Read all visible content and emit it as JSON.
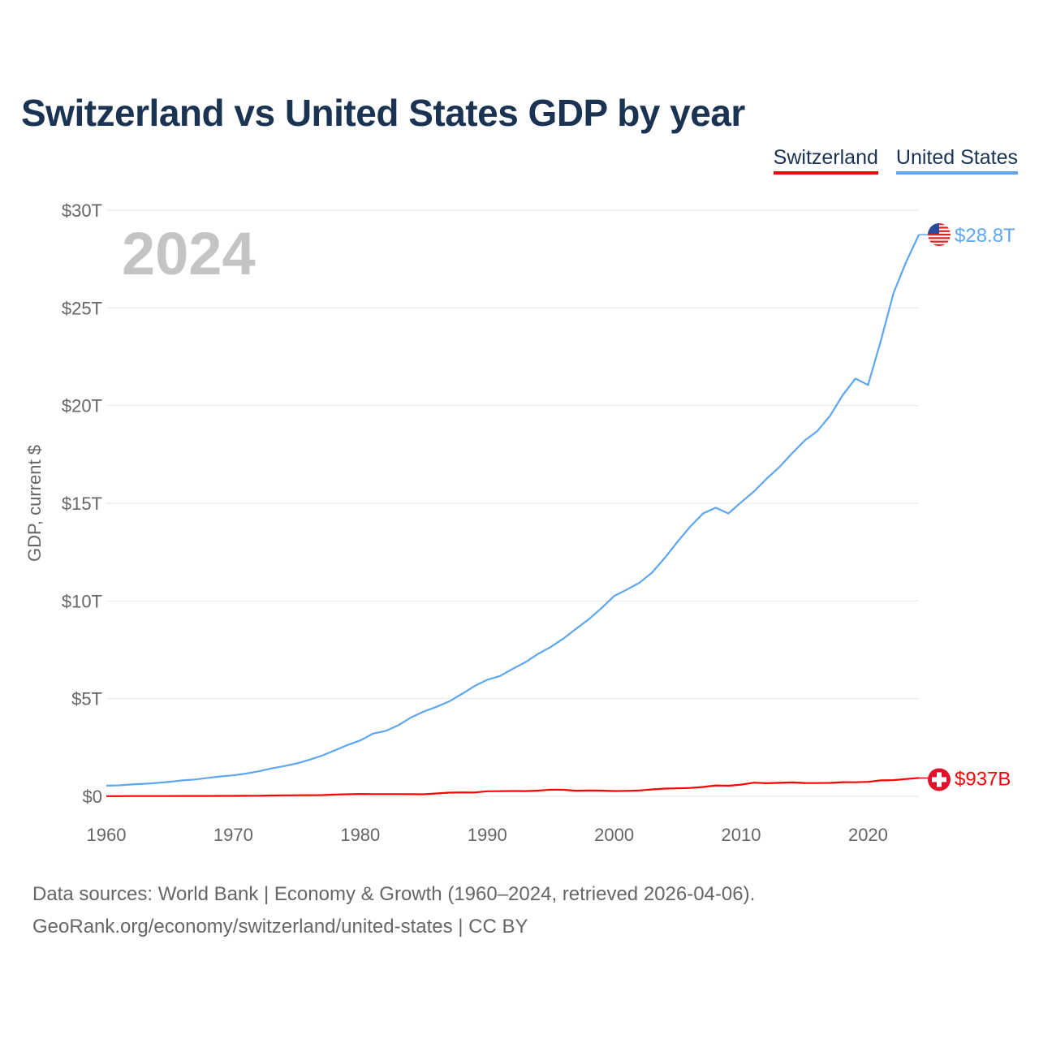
{
  "chart_data": {
    "type": "line",
    "title": "Switzerland vs United States GDP by year",
    "ylabel": "GDP, current $",
    "xlabel": "",
    "year_label": "2024",
    "xlim": [
      1960,
      2024
    ],
    "ylim": [
      0,
      30
    ],
    "x_ticks": [
      1960,
      1970,
      1980,
      1990,
      2000,
      2010,
      2020
    ],
    "y_ticks": [
      0,
      5,
      10,
      15,
      20,
      25,
      30
    ],
    "y_tick_labels": [
      "$0",
      "$5T",
      "$10T",
      "$15T",
      "$20T",
      "$25T",
      "$30T"
    ],
    "grid": true,
    "legend_position": "top-right",
    "x": [
      1960,
      1961,
      1962,
      1963,
      1964,
      1965,
      1966,
      1967,
      1968,
      1969,
      1970,
      1971,
      1972,
      1973,
      1974,
      1975,
      1976,
      1977,
      1978,
      1979,
      1980,
      1981,
      1982,
      1983,
      1984,
      1985,
      1986,
      1987,
      1988,
      1989,
      1990,
      1991,
      1992,
      1993,
      1994,
      1995,
      1996,
      1997,
      1998,
      1999,
      2000,
      2001,
      2002,
      2003,
      2004,
      2005,
      2006,
      2007,
      2008,
      2009,
      2010,
      2011,
      2012,
      2013,
      2014,
      2015,
      2016,
      2017,
      2018,
      2019,
      2020,
      2021,
      2022,
      2023,
      2024
    ],
    "series": [
      {
        "name": "Switzerland",
        "color": "#ff0000",
        "end_label": "$937B",
        "flag": "switzerland-flag",
        "values": [
          0.009,
          0.01,
          0.011,
          0.012,
          0.013,
          0.014,
          0.015,
          0.016,
          0.017,
          0.019,
          0.021,
          0.025,
          0.031,
          0.041,
          0.048,
          0.056,
          0.059,
          0.063,
          0.089,
          0.102,
          0.12,
          0.112,
          0.113,
          0.114,
          0.109,
          0.103,
          0.146,
          0.185,
          0.198,
          0.196,
          0.258,
          0.263,
          0.271,
          0.266,
          0.292,
          0.342,
          0.331,
          0.287,
          0.295,
          0.289,
          0.272,
          0.279,
          0.301,
          0.352,
          0.394,
          0.408,
          0.43,
          0.479,
          0.555,
          0.541,
          0.598,
          0.7,
          0.668,
          0.689,
          0.709,
          0.68,
          0.677,
          0.687,
          0.721,
          0.717,
          0.741,
          0.813,
          0.828,
          0.885,
          0.937
        ]
      },
      {
        "name": "United States",
        "color": "#5ea6ef",
        "end_label": "$28.8T",
        "flag": "usa-flag",
        "values": [
          0.543,
          0.563,
          0.605,
          0.639,
          0.686,
          0.744,
          0.815,
          0.862,
          0.943,
          1.02,
          1.073,
          1.165,
          1.28,
          1.425,
          1.545,
          1.684,
          1.873,
          2.082,
          2.352,
          2.627,
          2.857,
          3.207,
          3.343,
          3.634,
          4.037,
          4.339,
          4.58,
          4.855,
          5.236,
          5.642,
          5.963,
          6.158,
          6.52,
          6.859,
          7.287,
          7.64,
          8.073,
          8.578,
          9.063,
          9.631,
          10.251,
          10.582,
          10.936,
          11.458,
          12.214,
          13.037,
          13.815,
          14.475,
          14.77,
          14.478,
          15.049,
          15.6,
          16.254,
          16.843,
          17.551,
          18.206,
          18.695,
          19.477,
          20.533,
          21.381,
          21.06,
          23.315,
          25.744,
          27.361,
          28.751
        ]
      }
    ]
  },
  "footer": {
    "line1": "Data sources: World Bank | Economy & Growth (1960–2024, retrieved 2026-04-06).",
    "line2": "GeoRank.org/economy/switzerland/united-states | CC BY"
  }
}
